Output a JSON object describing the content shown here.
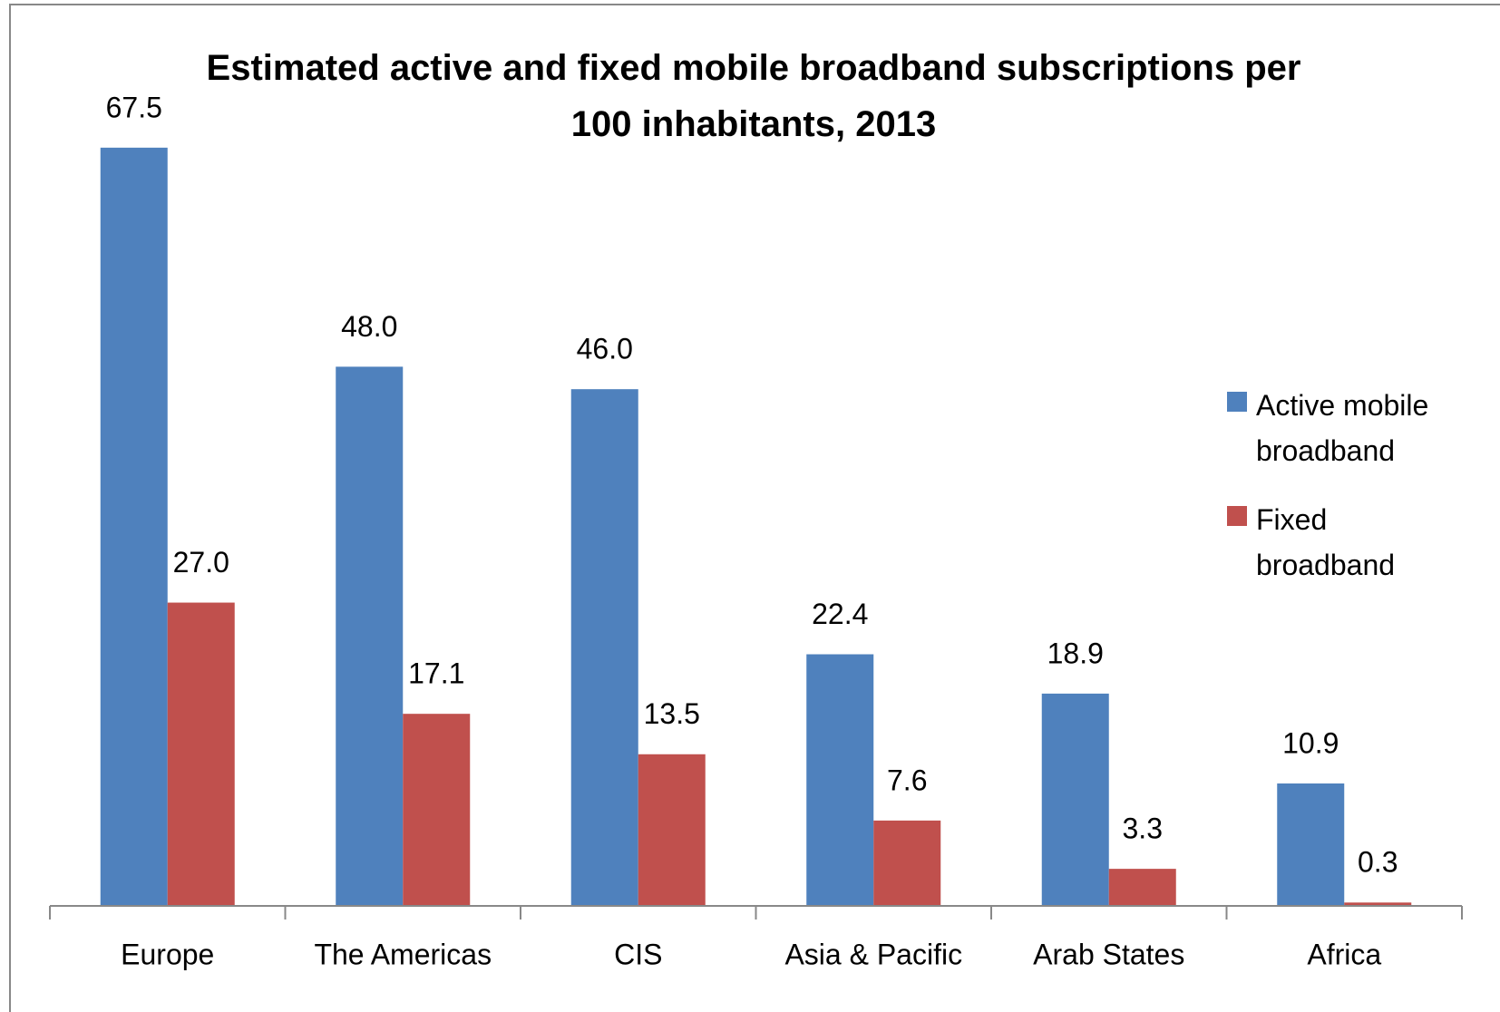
{
  "chart_data": {
    "type": "bar",
    "title": "Estimated active and fixed mobile broadband subscriptions per 100 inhabitants, 2013",
    "categories": [
      "Europe",
      "The Americas",
      "CIS",
      "Asia & Pacific",
      "Arab States",
      "Africa"
    ],
    "series": [
      {
        "name": "Active mobile broadband",
        "color": "#4f81bd",
        "values": [
          67.5,
          48,
          46,
          22.4,
          18.9,
          10.9
        ],
        "value_labels": [
          "67.5",
          "48.0",
          "46.0",
          "22.4",
          "18.9",
          "10.9"
        ]
      },
      {
        "name": "Fixed broadband",
        "color": "#c0504d",
        "values": [
          27,
          17.1,
          13.5,
          7.6,
          3.3,
          0.3
        ],
        "value_labels": [
          "27.0",
          "17.1",
          "13.5",
          "7.6",
          "3.3",
          "0.3"
        ]
      }
    ],
    "ylim": [
      0,
      80
    ],
    "legend": "right"
  }
}
